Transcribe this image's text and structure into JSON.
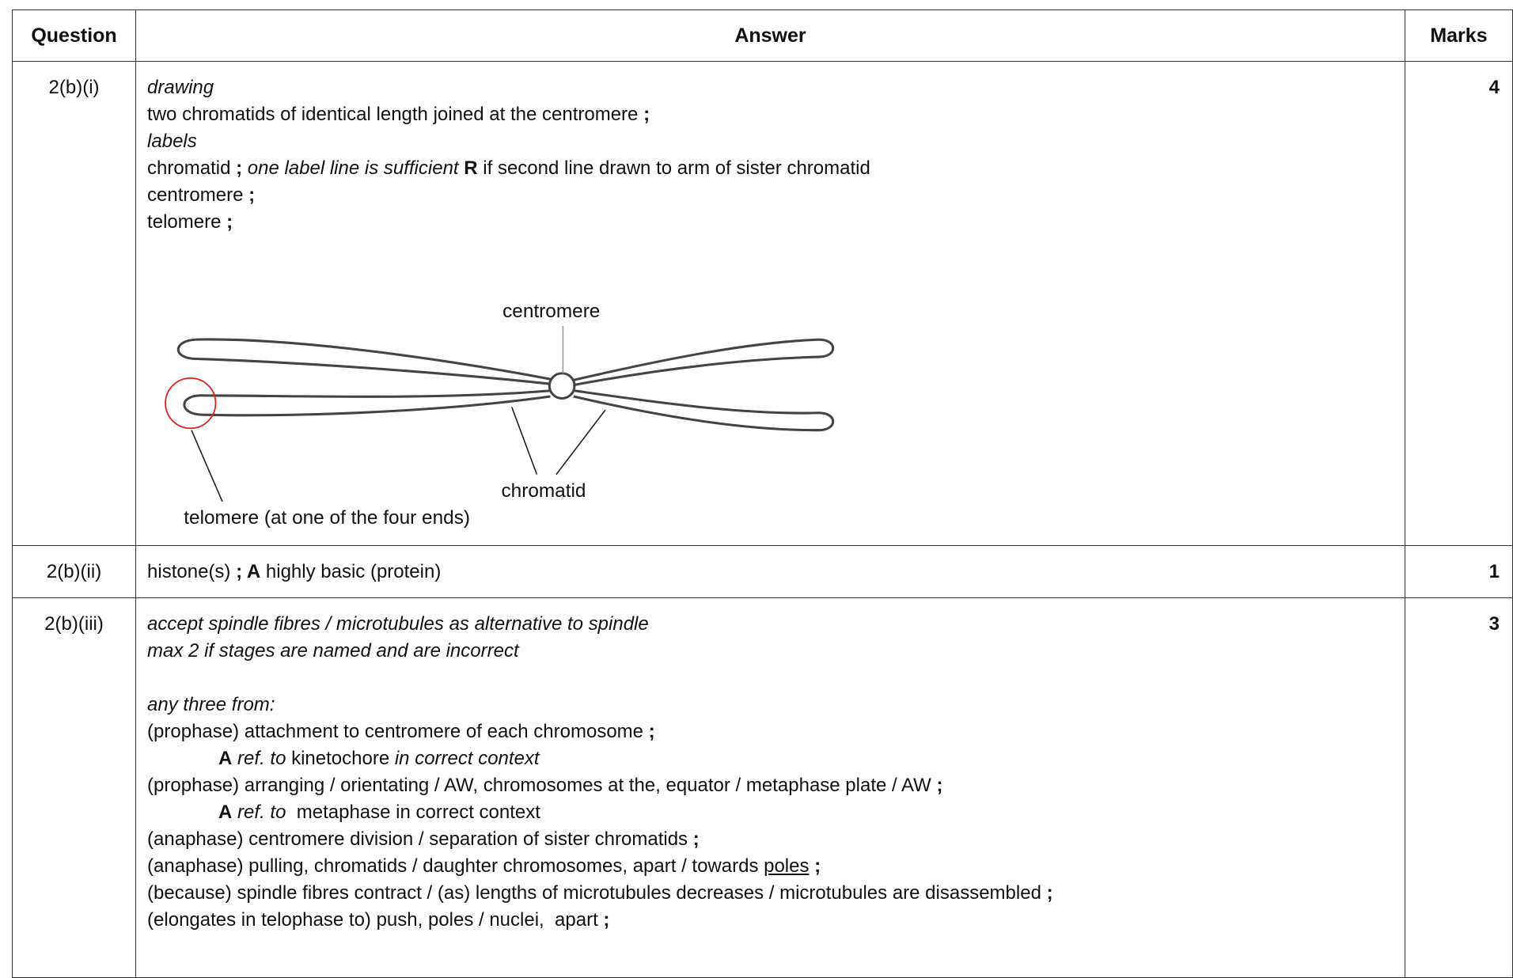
{
  "header": {
    "question": "Question",
    "answer": "Answer",
    "marks": "Marks"
  },
  "rows": [
    {
      "question": "2(b)(i)",
      "lines": [
        [
          "drawing"
        ],
        [
          "two chromatids of identical length joined at the centromere ",
          ";"
        ],
        [
          "labels"
        ],
        [
          "chromatid ",
          ";",
          " one label line is sufficient ",
          "R",
          " if second line drawn to arm of sister chromatid"
        ],
        [
          "centromere ",
          ";"
        ],
        [
          "telomere ",
          ";"
        ]
      ],
      "diagram": {
        "labels": [
          "centromere",
          "chromatid",
          "telomere (at one of the four ends)"
        ]
      },
      "marks": "4"
    },
    {
      "question": "2(b)(ii)",
      "lines": [
        [
          "histone(s) ",
          "; ",
          "A",
          " highly basic (protein)"
        ]
      ],
      "marks": "1"
    },
    {
      "question": "2(b)(iii)",
      "lines": [
        [
          "accept spindle fibres / microtubules as alternative to spindle"
        ],
        [
          "max 2 if stages are named and are incorrect"
        ],
        [
          "any three from:"
        ],
        [
          "(prophase) attachment to centromere of each chromosome ",
          ";"
        ],
        [
          "A",
          " ref. to",
          " kinetochore ",
          "in correct context"
        ],
        [
          "(prophase) arranging / orientating / AW, chromosomes at the, equator / metaphase plate / AW ",
          ";"
        ],
        [
          "A",
          " ref. to",
          "  metaphase in correct context"
        ],
        [
          "(anaphase) centromere division / separation of sister chromatids ",
          ";"
        ],
        [
          "(anaphase) pulling, chromatids / daughter chromosomes, apart / towards ",
          "poles",
          " ;"
        ],
        [
          "(because) spindle fibres contract / (as) lengths of microtubules decreases / microtubules are disassembled ",
          ";"
        ],
        [
          "(elongates in telophase to) push, poles / nuclei,  apart ",
          ";"
        ]
      ],
      "marks": "3"
    }
  ]
}
